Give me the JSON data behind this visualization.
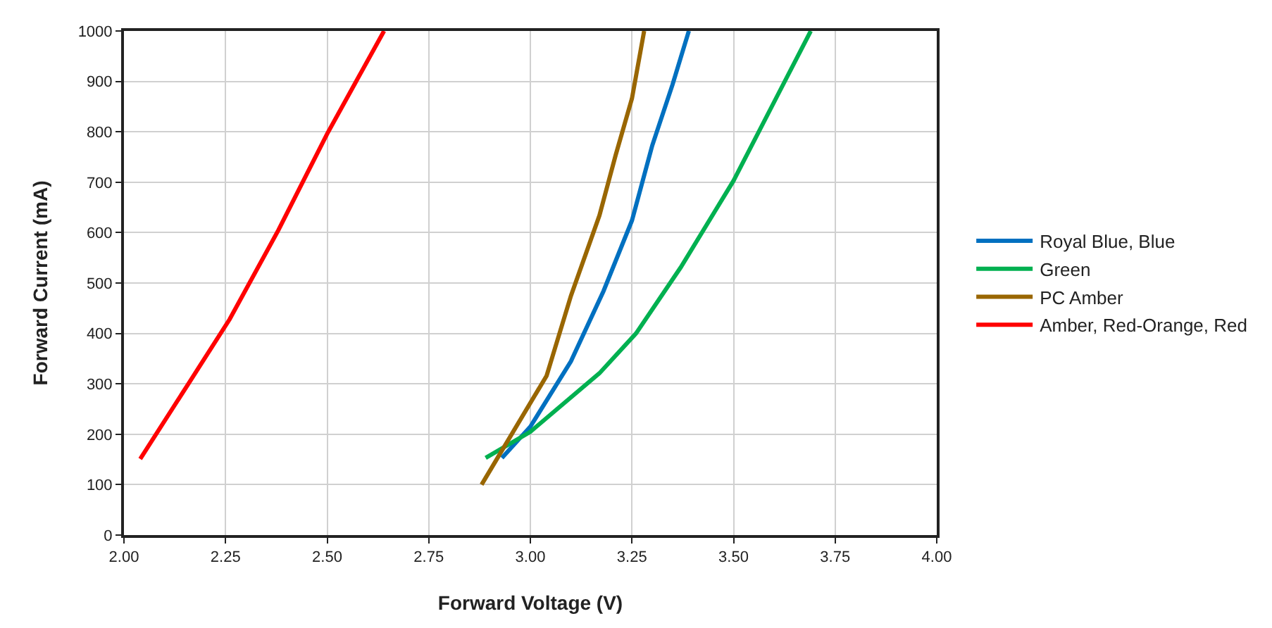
{
  "chart_data": {
    "type": "line",
    "xlabel": "Forward Voltage (V)",
    "ylabel": "Forward Current (mA)",
    "xlim": [
      2,
      4
    ],
    "xticks": [
      {
        "value": 2,
        "label": "2.00"
      },
      {
        "value": 2.25,
        "label": "2.25"
      },
      {
        "value": 2.5,
        "label": "2.50"
      },
      {
        "value": 2.75,
        "label": "2.75"
      },
      {
        "value": 3,
        "label": "3.00"
      },
      {
        "value": 3.25,
        "label": "3.25"
      },
      {
        "value": 3.5,
        "label": "3.50"
      },
      {
        "value": 3.75,
        "label": "3.75"
      },
      {
        "value": 4,
        "label": "4.00"
      }
    ],
    "ylim": [
      0,
      1000
    ],
    "yticks": [
      0,
      100,
      200,
      300,
      400,
      500,
      600,
      700,
      800,
      900,
      1000
    ],
    "grid": true,
    "legend": "right",
    "marker": "none",
    "line_style": "solid",
    "series": [
      {
        "name": "Royal Blue, Blue",
        "color": "#0070c0",
        "x": [
          2.93,
          3.0,
          3.1,
          3.18,
          3.25,
          3.3,
          3.35,
          3.39
        ],
        "values": [
          153,
          215,
          345,
          484,
          624,
          773,
          894,
          1000
        ]
      },
      {
        "name": "Green",
        "color": "#00b050",
        "x": [
          2.89,
          3.0,
          3.17,
          3.26,
          3.37,
          3.5,
          3.61,
          3.69
        ],
        "values": [
          153,
          205,
          321,
          400,
          531,
          703,
          875,
          1000
        ]
      },
      {
        "name": "PC Amber",
        "color": "#996600",
        "x": [
          2.88,
          3.04,
          3.1,
          3.17,
          3.21,
          3.25,
          3.28
        ],
        "values": [
          100,
          316,
          475,
          634,
          754,
          866,
          1000
        ]
      },
      {
        "name": "Amber, Red-Orange, Red",
        "color": "#ff0000",
        "x": [
          2.04,
          2.16,
          2.26,
          2.38,
          2.5,
          2.64
        ],
        "values": [
          151,
          302,
          428,
          605,
          796,
          1000
        ]
      }
    ]
  }
}
